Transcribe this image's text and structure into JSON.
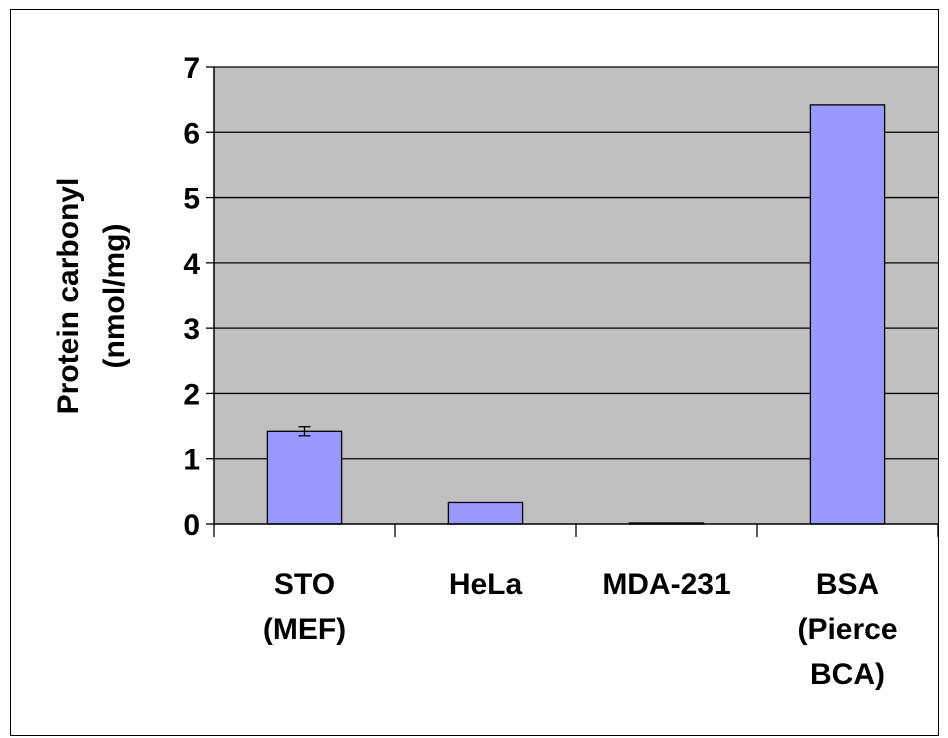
{
  "chart_data": {
    "type": "bar",
    "title": "",
    "xlabel": "",
    "ylabel": [
      "Protein carbonyl",
      "(nmol/mg)"
    ],
    "categories": [
      [
        "STO",
        "(MEF)"
      ],
      [
        "HeLa"
      ],
      [
        "MDA-231"
      ],
      [
        "BSA",
        "(Pierce",
        "BCA)"
      ]
    ],
    "values": [
      1.42,
      0.33,
      0.01,
      6.42
    ],
    "error_bars": [
      0.07,
      null,
      null,
      null
    ],
    "ylim": [
      0,
      7
    ],
    "yticks": [
      "0",
      "1",
      "2",
      "3",
      "4",
      "5",
      "6",
      "7"
    ],
    "grid": true,
    "legend": "none",
    "colors": {
      "bar": "#9999FF",
      "plot_background": "#C0C0C0",
      "grid": "#000000"
    }
  }
}
